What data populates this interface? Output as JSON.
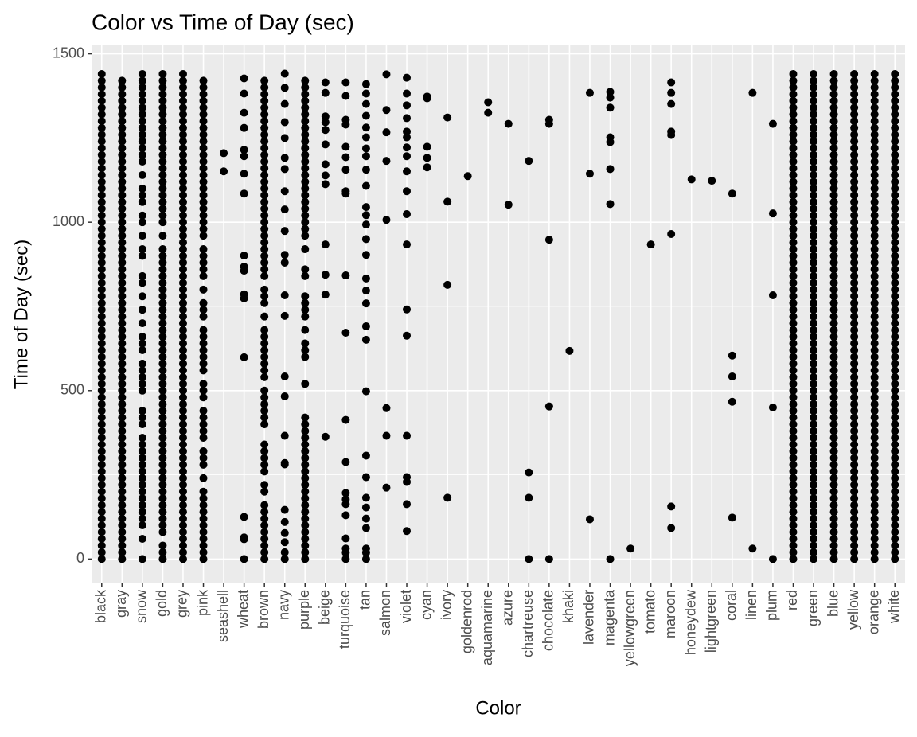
{
  "chart_data": {
    "type": "strip",
    "title": "Color vs Time of Day (sec)",
    "x_label": "Color",
    "y_label": "Time of Day (sec)",
    "categories": [
      "black",
      "gray",
      "snow",
      "gold",
      "grey",
      "pink",
      "seashell",
      "wheat",
      "brown",
      "navy",
      "purple",
      "beige",
      "turquoise",
      "tan",
      "salmon",
      "violet",
      "cyan",
      "ivory",
      "goldenrod",
      "aquamarine",
      "azure",
      "chartreuse",
      "chocolate",
      "khaki",
      "lavender",
      "magenta",
      "yellowgreen",
      "tomato",
      "maroon",
      "honeydew",
      "lightgreen",
      "coral",
      "linen",
      "plum",
      "red",
      "green",
      "blue",
      "yellow",
      "orange",
      "white"
    ],
    "values": [
      [
        0,
        20,
        40,
        60,
        80,
        100,
        120,
        140,
        160,
        180,
        200,
        220,
        240,
        260,
        280,
        300,
        320,
        340,
        360,
        380,
        400,
        420,
        440,
        460,
        480,
        500,
        520,
        540,
        560,
        580,
        600,
        620,
        640,
        660,
        680,
        700,
        720,
        740,
        760,
        780,
        800,
        820,
        840,
        860,
        880,
        900,
        920,
        940,
        960,
        980,
        1000,
        1020,
        1040,
        1060,
        1080,
        1100,
        1120,
        1140,
        1160,
        1180,
        1200,
        1220,
        1240,
        1260,
        1280,
        1300,
        1320,
        1340,
        1360,
        1380,
        1400,
        1420,
        1440
      ],
      [
        0,
        20,
        40,
        60,
        80,
        100,
        120,
        140,
        160,
        180,
        200,
        220,
        240,
        260,
        280,
        300,
        320,
        340,
        360,
        380,
        400,
        420,
        440,
        460,
        480,
        500,
        520,
        540,
        560,
        580,
        600,
        620,
        640,
        660,
        680,
        700,
        720,
        740,
        760,
        780,
        800,
        820,
        840,
        860,
        880,
        900,
        920,
        940,
        960,
        980,
        1000,
        1020,
        1040,
        1060,
        1080,
        1100,
        1120,
        1140,
        1160,
        1180,
        1200,
        1220,
        1240,
        1260,
        1280,
        1300,
        1320,
        1340,
        1360,
        1380,
        1400,
        1420
      ],
      [
        0,
        60,
        100,
        120,
        140,
        160,
        180,
        200,
        220,
        240,
        260,
        280,
        300,
        320,
        340,
        360,
        400,
        420,
        440,
        500,
        520,
        540,
        560,
        580,
        620,
        640,
        660,
        700,
        740,
        780,
        820,
        840,
        900,
        920,
        960,
        1000,
        1020,
        1060,
        1080,
        1100,
        1140,
        1180,
        1200,
        1220,
        1240,
        1260,
        1280,
        1300,
        1320,
        1340,
        1360,
        1380,
        1400,
        1420,
        1440
      ],
      [
        0,
        20,
        40,
        80,
        100,
        120,
        140,
        160,
        180,
        200,
        220,
        240,
        260,
        280,
        300,
        320,
        340,
        360,
        380,
        400,
        420,
        440,
        460,
        480,
        500,
        520,
        540,
        560,
        580,
        600,
        620,
        640,
        660,
        680,
        700,
        720,
        740,
        760,
        780,
        800,
        820,
        840,
        860,
        880,
        900,
        920,
        960,
        1000,
        1020,
        1040,
        1060,
        1080,
        1100,
        1120,
        1140,
        1160,
        1180,
        1200,
        1220,
        1240,
        1260,
        1280,
        1300,
        1320,
        1340,
        1360,
        1380,
        1400,
        1420,
        1440
      ],
      [
        0,
        20,
        40,
        60,
        80,
        100,
        120,
        140,
        160,
        180,
        200,
        220,
        240,
        260,
        280,
        300,
        320,
        340,
        360,
        380,
        400,
        420,
        440,
        460,
        480,
        500,
        520,
        540,
        560,
        580,
        600,
        620,
        640,
        660,
        680,
        700,
        720,
        740,
        760,
        780,
        800,
        820,
        840,
        860,
        880,
        900,
        920,
        940,
        960,
        980,
        1000,
        1020,
        1040,
        1060,
        1080,
        1100,
        1120,
        1140,
        1160,
        1180,
        1200,
        1220,
        1240,
        1260,
        1280,
        1300,
        1320,
        1340,
        1360,
        1380,
        1400,
        1420,
        1440
      ],
      [
        0,
        20,
        40,
        60,
        80,
        100,
        120,
        140,
        160,
        180,
        200,
        240,
        280,
        300,
        320,
        360,
        380,
        400,
        420,
        440,
        480,
        500,
        520,
        560,
        580,
        600,
        620,
        640,
        660,
        680,
        720,
        740,
        760,
        800,
        840,
        860,
        880,
        900,
        920,
        960,
        980,
        1000,
        1020,
        1040,
        1060,
        1080,
        1100,
        1120,
        1140,
        1160,
        1180,
        1200,
        1220,
        1240,
        1260,
        1280,
        1300,
        1320,
        1340,
        1360,
        1380,
        1400,
        1420
      ],
      [
        1151,
        1205
      ],
      [
        1427,
        1382,
        1325,
        1280,
        1215,
        1196,
        1144,
        1085,
        901,
        868,
        856,
        786,
        774,
        599,
        125,
        64,
        59,
        0
      ],
      [
        0,
        20,
        40,
        60,
        80,
        100,
        120,
        140,
        160,
        200,
        220,
        260,
        280,
        300,
        320,
        340,
        400,
        420,
        440,
        460,
        480,
        500,
        540,
        560,
        580,
        600,
        620,
        640,
        660,
        680,
        720,
        760,
        780,
        800,
        840,
        860,
        880,
        900,
        920,
        940,
        960,
        980,
        1000,
        1020,
        1040,
        1060,
        1080,
        1100,
        1120,
        1140,
        1160,
        1180,
        1200,
        1220,
        1240,
        1260,
        1280,
        1300,
        1320,
        1340,
        1360,
        1380,
        1400,
        1420
      ],
      [
        1441,
        1399,
        1351,
        1297,
        1250,
        1191,
        1158,
        1092,
        1038,
        974,
        903,
        880,
        783,
        722,
        542,
        483,
        366,
        285,
        281,
        146,
        110,
        77,
        50,
        20,
        0
      ],
      [
        0,
        20,
        40,
        60,
        80,
        100,
        120,
        140,
        160,
        180,
        200,
        220,
        240,
        260,
        280,
        300,
        320,
        340,
        360,
        380,
        400,
        420,
        520,
        600,
        620,
        640,
        680,
        720,
        740,
        760,
        780,
        840,
        860,
        920,
        960,
        980,
        1000,
        1020,
        1040,
        1060,
        1080,
        1100,
        1120,
        1140,
        1160,
        1180,
        1200,
        1220,
        1240,
        1260,
        1280,
        1300,
        1320,
        1340,
        1360,
        1380,
        1400,
        1420
      ],
      [
        1415,
        1384,
        1314,
        1297,
        1274,
        1231,
        1172,
        1139,
        1113,
        934,
        844,
        785,
        363
      ],
      [
        1415,
        1375,
        1304,
        1290,
        1224,
        1193,
        1156,
        1092,
        1085,
        842,
        672,
        413,
        288,
        196,
        177,
        163,
        130,
        61,
        31,
        19,
        0
      ],
      [
        1410,
        1382,
        1351,
        1316,
        1281,
        1252,
        1219,
        1196,
        1156,
        1108,
        1045,
        1021,
        993,
        950,
        903,
        833,
        797,
        759,
        691,
        651,
        498,
        307,
        243,
        182,
        153,
        120,
        92,
        31,
        19,
        0
      ],
      [
        1439,
        1333,
        1267,
        1182,
        1007,
        448,
        366,
        212
      ],
      [
        1429,
        1382,
        1347,
        1309,
        1269,
        1252,
        1222,
        1196,
        1151,
        1092,
        1024,
        934,
        741,
        663,
        366,
        243,
        229,
        163,
        83
      ],
      [
        1373,
        1368,
        1224,
        1191,
        1163
      ],
      [
        1311,
        1061,
        814,
        182
      ],
      [
        1137
      ],
      [
        1356,
        1325
      ],
      [
        1292,
        1052
      ],
      [
        1182,
        257,
        182,
        0
      ],
      [
        1304,
        1292,
        948,
        453,
        0
      ],
      [
        618
      ],
      [
        1384,
        1144,
        118
      ],
      [
        1387,
        1370,
        1340,
        1252,
        1238,
        1158,
        1054,
        0
      ],
      [
        31
      ],
      [
        934
      ],
      [
        1415,
        1384,
        1351,
        1269,
        1259,
        965,
        156,
        92
      ],
      [
        1127
      ],
      [
        1123
      ],
      [
        1085,
        604,
        542,
        467,
        123
      ],
      [
        1384,
        31
      ],
      [
        1292,
        1026,
        783,
        450,
        0
      ],
      [
        0,
        20,
        40,
        60,
        80,
        100,
        120,
        140,
        160,
        180,
        200,
        220,
        240,
        260,
        280,
        300,
        320,
        340,
        360,
        380,
        400,
        420,
        440,
        460,
        480,
        500,
        520,
        540,
        560,
        580,
        600,
        620,
        640,
        660,
        680,
        700,
        720,
        740,
        760,
        780,
        800,
        820,
        840,
        860,
        880,
        900,
        920,
        940,
        960,
        980,
        1000,
        1020,
        1040,
        1060,
        1080,
        1100,
        1120,
        1140,
        1160,
        1180,
        1200,
        1220,
        1240,
        1260,
        1280,
        1300,
        1320,
        1340,
        1360,
        1380,
        1400,
        1420,
        1440
      ],
      [
        0,
        20,
        40,
        60,
        80,
        100,
        120,
        140,
        160,
        180,
        200,
        220,
        240,
        260,
        280,
        300,
        320,
        340,
        360,
        380,
        400,
        420,
        440,
        460,
        480,
        500,
        520,
        540,
        560,
        580,
        600,
        620,
        640,
        660,
        680,
        700,
        720,
        740,
        760,
        780,
        800,
        820,
        840,
        860,
        880,
        900,
        920,
        940,
        960,
        980,
        1000,
        1020,
        1040,
        1060,
        1080,
        1100,
        1120,
        1140,
        1160,
        1180,
        1200,
        1220,
        1240,
        1260,
        1280,
        1300,
        1320,
        1340,
        1360,
        1380,
        1400,
        1420,
        1440
      ],
      [
        0,
        20,
        40,
        60,
        80,
        100,
        120,
        140,
        160,
        180,
        200,
        220,
        240,
        260,
        280,
        300,
        320,
        340,
        360,
        380,
        400,
        420,
        440,
        460,
        480,
        500,
        520,
        540,
        560,
        580,
        600,
        620,
        640,
        660,
        680,
        700,
        720,
        740,
        760,
        780,
        800,
        820,
        840,
        860,
        880,
        900,
        920,
        940,
        960,
        980,
        1000,
        1020,
        1040,
        1060,
        1080,
        1100,
        1120,
        1140,
        1160,
        1180,
        1200,
        1220,
        1240,
        1260,
        1280,
        1300,
        1320,
        1340,
        1360,
        1380,
        1400,
        1420,
        1440
      ],
      [
        0,
        20,
        40,
        60,
        80,
        100,
        120,
        140,
        160,
        180,
        200,
        220,
        240,
        260,
        280,
        300,
        320,
        340,
        360,
        380,
        400,
        420,
        440,
        460,
        480,
        500,
        520,
        540,
        560,
        580,
        600,
        620,
        640,
        660,
        680,
        700,
        720,
        740,
        760,
        780,
        800,
        820,
        840,
        860,
        880,
        900,
        920,
        940,
        960,
        980,
        1000,
        1020,
        1040,
        1060,
        1080,
        1100,
        1120,
        1140,
        1160,
        1180,
        1200,
        1220,
        1240,
        1260,
        1280,
        1300,
        1320,
        1340,
        1360,
        1380,
        1400,
        1420,
        1440
      ],
      [
        0,
        20,
        40,
        60,
        80,
        100,
        120,
        140,
        160,
        180,
        200,
        220,
        240,
        260,
        280,
        300,
        320,
        340,
        360,
        380,
        400,
        420,
        440,
        460,
        480,
        500,
        520,
        540,
        560,
        580,
        600,
        620,
        640,
        660,
        680,
        700,
        720,
        740,
        760,
        780,
        800,
        820,
        840,
        860,
        880,
        900,
        920,
        940,
        960,
        980,
        1000,
        1020,
        1040,
        1060,
        1080,
        1100,
        1120,
        1140,
        1160,
        1180,
        1200,
        1220,
        1240,
        1260,
        1280,
        1300,
        1320,
        1340,
        1360,
        1380,
        1400,
        1420,
        1440
      ],
      [
        0,
        20,
        40,
        60,
        80,
        100,
        120,
        140,
        160,
        180,
        200,
        220,
        240,
        260,
        280,
        300,
        320,
        340,
        360,
        380,
        400,
        420,
        440,
        460,
        480,
        500,
        520,
        540,
        560,
        580,
        600,
        620,
        640,
        660,
        680,
        700,
        720,
        740,
        760,
        780,
        800,
        820,
        840,
        860,
        880,
        900,
        920,
        940,
        960,
        980,
        1000,
        1020,
        1040,
        1060,
        1080,
        1100,
        1120,
        1140,
        1160,
        1180,
        1200,
        1220,
        1240,
        1260,
        1280,
        1300,
        1320,
        1340,
        1360,
        1380,
        1400,
        1420,
        1440
      ]
    ],
    "color": "#000000",
    "ylim": [
      -70,
      1525
    ],
    "yticks": [
      0,
      500,
      1000,
      1500
    ],
    "minor_yticks": [
      250,
      750,
      1250
    ],
    "grid": true
  }
}
